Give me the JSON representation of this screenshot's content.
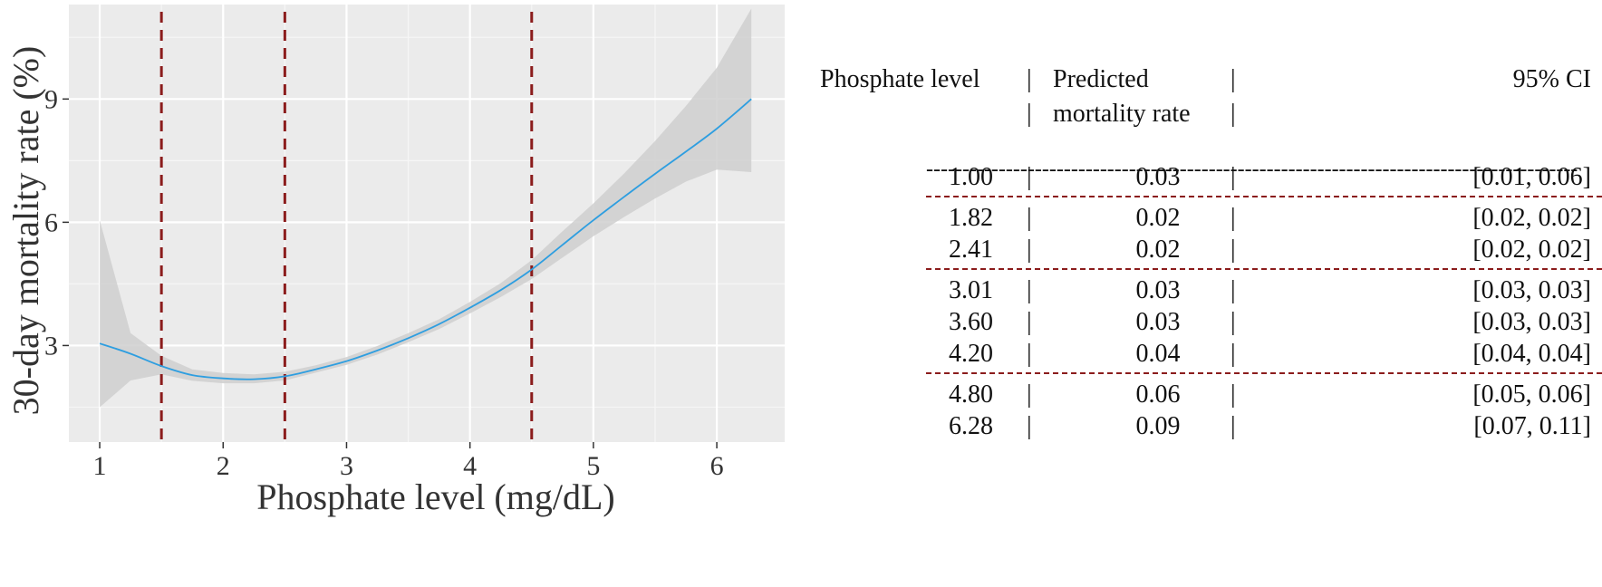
{
  "chart_data": {
    "type": "line",
    "title": "",
    "xlabel": "Phosphate level (mg/dL)",
    "ylabel": "30-day mortality rate (%)",
    "xlim": [
      0.75,
      6.55
    ],
    "ylim": [
      0.65,
      11.3
    ],
    "x_ticks": [
      1,
      2,
      3,
      4,
      5,
      6
    ],
    "x_tick_labels": [
      "1",
      "2",
      "3",
      "4",
      "5",
      "6"
    ],
    "y_ticks": [
      3,
      6,
      9
    ],
    "y_tick_labels": [
      "3",
      "6",
      "9"
    ],
    "grid": true,
    "background": "#ebebeb",
    "curve_color": "#2e9ee0",
    "band_color": "#cfcfcf",
    "vline_color": "#8b1c1c",
    "vlines": [
      1.5,
      2.5,
      4.5
    ],
    "series": [
      {
        "x": [
          1.0,
          1.25,
          1.5,
          1.75,
          2.0,
          2.25,
          2.5,
          2.75,
          3.0,
          3.25,
          3.5,
          3.75,
          4.0,
          4.25,
          4.5,
          4.75,
          5.0,
          5.25,
          5.5,
          5.75,
          6.0,
          6.28
        ],
        "y": [
          3.05,
          2.8,
          2.5,
          2.28,
          2.2,
          2.18,
          2.25,
          2.42,
          2.62,
          2.88,
          3.18,
          3.52,
          3.92,
          4.35,
          4.85,
          5.45,
          6.05,
          6.62,
          7.18,
          7.72,
          8.28,
          9.0
        ],
        "lower": [
          1.5,
          2.15,
          2.3,
          2.14,
          2.08,
          2.08,
          2.15,
          2.34,
          2.53,
          2.78,
          3.08,
          3.4,
          3.78,
          4.18,
          4.62,
          5.14,
          5.66,
          6.13,
          6.58,
          6.99,
          7.28,
          7.22
        ],
        "upper": [
          6.05,
          3.3,
          2.75,
          2.42,
          2.33,
          2.3,
          2.36,
          2.52,
          2.72,
          2.99,
          3.3,
          3.64,
          4.06,
          4.52,
          5.08,
          5.78,
          6.46,
          7.19,
          7.98,
          8.83,
          9.76,
          11.2
        ]
      }
    ]
  },
  "table": {
    "headers": {
      "col1": "Phosphate level",
      "col2_line1": "Predicted",
      "col2_line2": "mortality rate",
      "col3": "95% CI"
    },
    "separator": "|",
    "header_rule": "------------------------------------------------------------------------------------------",
    "groups": [
      [
        {
          "level": "1.00",
          "rate": "0.03",
          "ci": "[0.01, 0.06]"
        }
      ],
      [
        {
          "level": "1.82",
          "rate": "0.02",
          "ci": "[0.02, 0.02]"
        },
        {
          "level": "2.41",
          "rate": "0.02",
          "ci": "[0.02, 0.02]"
        }
      ],
      [
        {
          "level": "3.01",
          "rate": "0.03",
          "ci": "[0.03, 0.03]"
        },
        {
          "level": "3.60",
          "rate": "0.03",
          "ci": "[0.03, 0.03]"
        },
        {
          "level": "4.20",
          "rate": "0.04",
          "ci": "[0.04, 0.04]"
        }
      ],
      [
        {
          "level": "4.80",
          "rate": "0.06",
          "ci": "[0.05, 0.06]"
        },
        {
          "level": "6.28",
          "rate": "0.09",
          "ci": "[0.07, 0.11]"
        }
      ]
    ]
  }
}
